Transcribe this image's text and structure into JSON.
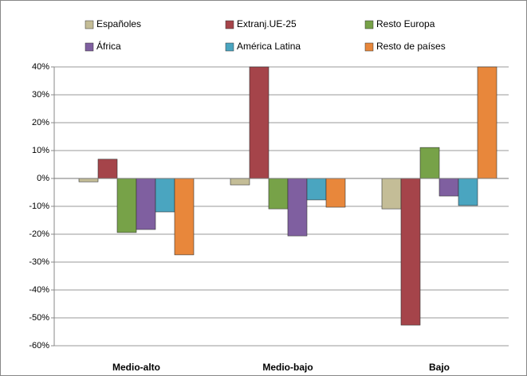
{
  "chart_data": {
    "type": "bar",
    "categories": [
      "Medio-alto",
      "Medio-bajo",
      "Bajo"
    ],
    "series": [
      {
        "name": "Españoles",
        "color": "#c4bd97",
        "values": [
          -1.2,
          -2.3,
          -10.9
        ]
      },
      {
        "name": "Extranj.UE-25",
        "color": "#a5444a",
        "values": [
          6.9,
          40,
          -52.6
        ]
      },
      {
        "name": "Resto Europa",
        "color": "#77a248",
        "values": [
          -19.4,
          -10.9,
          11.1
        ]
      },
      {
        "name": "África",
        "color": "#7f5fa0",
        "values": [
          -18.3,
          -20.6,
          -6.3
        ]
      },
      {
        "name": "América Latina",
        "color": "#4aa5c0",
        "values": [
          -12,
          -7.7,
          -9.7
        ]
      },
      {
        "name": "Resto de países",
        "color": "#e8873b",
        "values": [
          -27.4,
          -10.3,
          40
        ]
      }
    ],
    "ylim": [
      -60,
      40
    ],
    "yticks": [
      {
        "value": -60,
        "label": "-60%"
      },
      {
        "value": -50,
        "label": "-50%"
      },
      {
        "value": -40,
        "label": "-40%"
      },
      {
        "value": -30,
        "label": "-30%"
      },
      {
        "value": -20,
        "label": "-20%"
      },
      {
        "value": -10,
        "label": "-10%"
      },
      {
        "value": 0,
        "label": "0%"
      },
      {
        "value": 10,
        "label": "10%"
      },
      {
        "value": 20,
        "label": "20%"
      },
      {
        "value": 30,
        "label": "30%"
      },
      {
        "value": 40,
        "label": "40%"
      }
    ],
    "grid": true
  }
}
